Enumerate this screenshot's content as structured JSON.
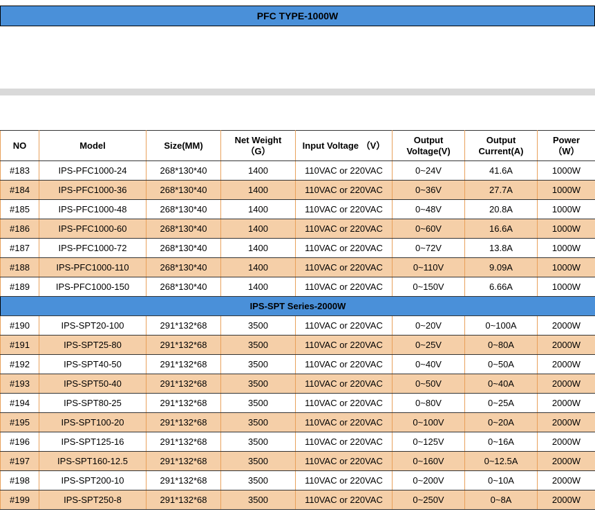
{
  "colors": {
    "header_bg": "#4a90d9",
    "row_even_bg": "#ffffff",
    "row_odd_bg": "#f5cfa8",
    "border_orange": "#e8a05a",
    "border_black": "#333333",
    "gray_band": "#d9d9d9"
  },
  "top_header": "PFC TYPE-1000W",
  "columns": [
    {
      "key": "no",
      "label": "NO"
    },
    {
      "key": "model",
      "label": "Model"
    },
    {
      "key": "size",
      "label": "Size(MM)"
    },
    {
      "key": "weight",
      "label": "Net Weight\n（G）"
    },
    {
      "key": "input_v",
      "label": "Input Voltage （V）"
    },
    {
      "key": "out_v",
      "label": "Output\nVoltage(V)"
    },
    {
      "key": "out_c",
      "label": "Output\nCurrent(A)"
    },
    {
      "key": "power",
      "label": "Power\n（W）"
    }
  ],
  "section2_title": "IPS-SPT Series-2000W",
  "rows1": [
    {
      "no": "#183",
      "model": "IPS-PFC1000-24",
      "size": "268*130*40",
      "weight": "1400",
      "input_v": "110VAC or 220VAC",
      "out_v": "0~24V",
      "out_c": "41.6A",
      "power": "1000W"
    },
    {
      "no": "#184",
      "model": "IPS-PFC1000-36",
      "size": "268*130*40",
      "weight": "1400",
      "input_v": "110VAC or 220VAC",
      "out_v": "0~36V",
      "out_c": "27.7A",
      "power": "1000W"
    },
    {
      "no": "#185",
      "model": "IPS-PFC1000-48",
      "size": "268*130*40",
      "weight": "1400",
      "input_v": "110VAC or 220VAC",
      "out_v": "0~48V",
      "out_c": "20.8A",
      "power": "1000W"
    },
    {
      "no": "#186",
      "model": "IPS-PFC1000-60",
      "size": "268*130*40",
      "weight": "1400",
      "input_v": "110VAC or 220VAC",
      "out_v": "0~60V",
      "out_c": "16.6A",
      "power": "1000W"
    },
    {
      "no": "#187",
      "model": "IPS-PFC1000-72",
      "size": "268*130*40",
      "weight": "1400",
      "input_v": "110VAC or 220VAC",
      "out_v": "0~72V",
      "out_c": "13.8A",
      "power": "1000W"
    },
    {
      "no": "#188",
      "model": "IPS-PFC1000-110",
      "size": "268*130*40",
      "weight": "1400",
      "input_v": "110VAC or 220VAC",
      "out_v": "0~110V",
      "out_c": "9.09A",
      "power": "1000W"
    },
    {
      "no": "#189",
      "model": "IPS-PFC1000-150",
      "size": "268*130*40",
      "weight": "1400",
      "input_v": "110VAC or 220VAC",
      "out_v": "0~150V",
      "out_c": "6.66A",
      "power": "1000W"
    }
  ],
  "rows2": [
    {
      "no": "#190",
      "model": "IPS-SPT20-100",
      "size": "291*132*68",
      "weight": "3500",
      "input_v": "110VAC or 220VAC",
      "out_v": "0~20V",
      "out_c": "0~100A",
      "power": "2000W"
    },
    {
      "no": "#191",
      "model": "IPS-SPT25-80",
      "size": "291*132*68",
      "weight": "3500",
      "input_v": "110VAC or 220VAC",
      "out_v": "0~25V",
      "out_c": "0~80A",
      "power": "2000W"
    },
    {
      "no": "#192",
      "model": "IPS-SPT40-50",
      "size": "291*132*68",
      "weight": "3500",
      "input_v": "110VAC or 220VAC",
      "out_v": "0~40V",
      "out_c": "0~50A",
      "power": "2000W"
    },
    {
      "no": "#193",
      "model": "IPS-SPT50-40",
      "size": "291*132*68",
      "weight": "3500",
      "input_v": "110VAC or 220VAC",
      "out_v": "0~50V",
      "out_c": "0~40A",
      "power": "2000W"
    },
    {
      "no": "#194",
      "model": "IPS-SPT80-25",
      "size": "291*132*68",
      "weight": "3500",
      "input_v": "110VAC or 220VAC",
      "out_v": "0~80V",
      "out_c": "0~25A",
      "power": "2000W"
    },
    {
      "no": "#195",
      "model": "IPS-SPT100-20",
      "size": "291*132*68",
      "weight": "3500",
      "input_v": "110VAC or 220VAC",
      "out_v": "0~100V",
      "out_c": "0~20A",
      "power": "2000W"
    },
    {
      "no": "#196",
      "model": "IPS-SPT125-16",
      "size": "291*132*68",
      "weight": "3500",
      "input_v": "110VAC or 220VAC",
      "out_v": "0~125V",
      "out_c": "0~16A",
      "power": "2000W"
    },
    {
      "no": "#197",
      "model": "IPS-SPT160-12.5",
      "size": "291*132*68",
      "weight": "3500",
      "input_v": "110VAC or 220VAC",
      "out_v": "0~160V",
      "out_c": "0~12.5A",
      "power": "2000W"
    },
    {
      "no": "#198",
      "model": "IPS-SPT200-10",
      "size": "291*132*68",
      "weight": "3500",
      "input_v": "110VAC or 220VAC",
      "out_v": "0~200V",
      "out_c": "0~10A",
      "power": "2000W"
    },
    {
      "no": "#199",
      "model": "IPS-SPT250-8",
      "size": "291*132*68",
      "weight": "3500",
      "input_v": "110VAC or 220VAC",
      "out_v": "0~250V",
      "out_c": "0~8A",
      "power": "2000W"
    }
  ]
}
